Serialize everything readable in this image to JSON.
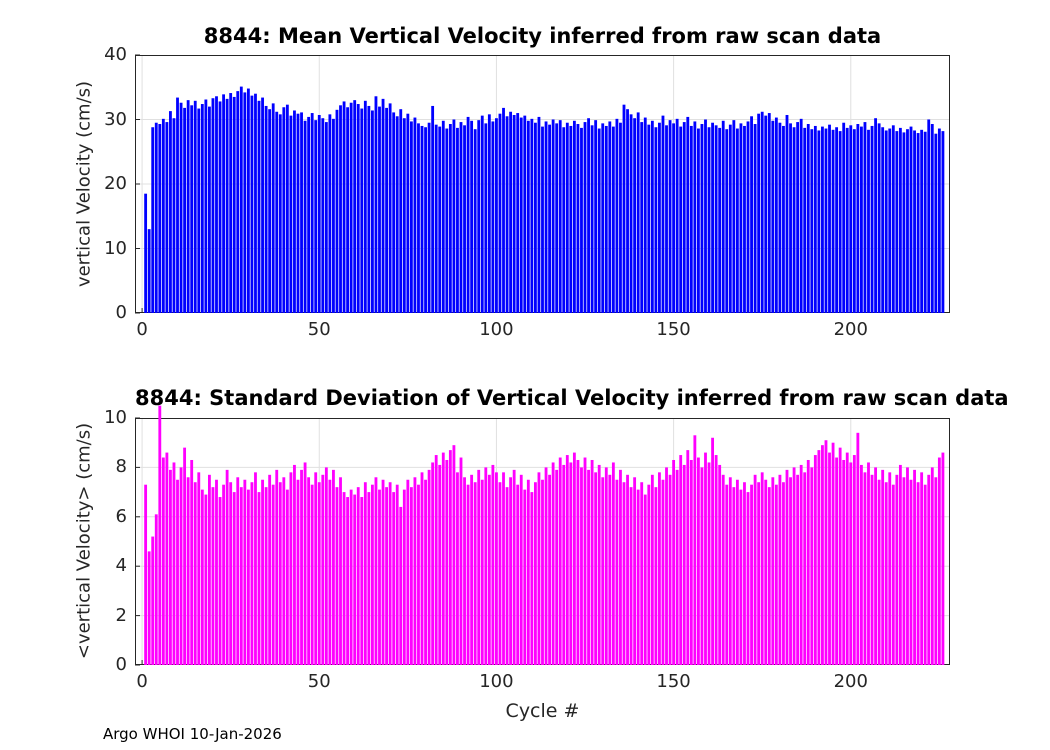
{
  "footer": {
    "text": "Argo WHOI 10-Jan-2026"
  },
  "chart_data": [
    {
      "type": "bar",
      "title": "8844: Mean Vertical Velocity inferred from raw scan data",
      "xlabel": "",
      "ylabel": "vertical Velocity (cm/s)",
      "bar_color": "#0000ff",
      "grid_color": "#e0e0e0",
      "axis_color": "#262626",
      "ylim": [
        0,
        40
      ],
      "yticks": [
        0,
        10,
        20,
        30,
        40
      ],
      "xlim": [
        -2,
        228
      ],
      "xticks": [
        0,
        50,
        100,
        150,
        200
      ],
      "x_start": 1,
      "legend": "none",
      "grid": "on",
      "values": [
        18.5,
        13.0,
        28.8,
        29.5,
        29.3,
        30.1,
        29.6,
        31.3,
        30.2,
        33.4,
        32.6,
        31.8,
        33.0,
        32.2,
        32.9,
        31.7,
        32.4,
        33.1,
        32.0,
        33.3,
        33.6,
        32.8,
        33.9,
        33.2,
        34.1,
        33.5,
        34.4,
        35.1,
        34.2,
        34.8,
        33.7,
        34.0,
        32.9,
        33.4,
        32.1,
        31.6,
        32.5,
        31.2,
        30.8,
        31.9,
        32.3,
        30.6,
        31.4,
        30.9,
        31.1,
        29.8,
        30.4,
        31.0,
        29.9,
        30.7,
        30.2,
        29.6,
        30.8,
        30.1,
        31.5,
        32.2,
        32.8,
        31.9,
        32.6,
        33.0,
        32.4,
        31.7,
        32.9,
        32.1,
        31.4,
        33.6,
        32.0,
        33.2,
        31.8,
        32.5,
        31.1,
        30.5,
        31.6,
        30.2,
        30.9,
        29.7,
        30.3,
        29.4,
        29.0,
        28.8,
        29.5,
        32.1,
        29.2,
        28.9,
        29.8,
        28.6,
        29.3,
        30.0,
        28.7,
        29.6,
        29.1,
        30.4,
        29.8,
        28.5,
        29.9,
        30.6,
        29.4,
        30.8,
        29.7,
        30.2,
        30.9,
        31.8,
        30.5,
        31.2,
        30.7,
        31.0,
        30.3,
        30.6,
        29.8,
        30.1,
        29.5,
        30.4,
        28.9,
        29.7,
        29.2,
        30.0,
        29.4,
        29.9,
        28.8,
        29.5,
        29.0,
        29.8,
        29.3,
        28.7,
        29.6,
        30.2,
        29.1,
        29.9,
        28.6,
        29.4,
        29.0,
        29.7,
        28.9,
        30.1,
        29.5,
        32.3,
        31.6,
        30.8,
        30.2,
        31.1,
        29.6,
        30.3,
        29.2,
        29.8,
        28.8,
        29.5,
        30.6,
        29.1,
        29.9,
        29.4,
        30.1,
        28.9,
        29.6,
        30.4,
        29.0,
        29.7,
        28.6,
        29.3,
        30.0,
        28.8,
        29.5,
        29.1,
        28.7,
        29.8,
        28.5,
        29.2,
        29.9,
        28.6,
        29.4,
        29.0,
        29.7,
        30.5,
        29.3,
        30.9,
        31.2,
        30.6,
        31.0,
        29.8,
        30.3,
        29.5,
        29.0,
        30.7,
        29.4,
        28.8,
        29.6,
        30.1,
        28.7,
        29.3,
        28.5,
        29.0,
        28.3,
        28.9,
        28.6,
        29.2,
        28.4,
        28.8,
        28.2,
        29.5,
        28.7,
        29.1,
        28.5,
        29.3,
        28.9,
        29.6,
        28.4,
        29.0,
        30.2,
        29.4,
        28.8,
        28.3,
        28.6,
        29.1,
        28.2,
        28.7,
        28.0,
        28.5,
        28.9,
        28.3,
        27.9,
        28.4,
        28.1,
        30.0,
        29.3,
        27.8,
        28.6,
        28.2
      ]
    },
    {
      "type": "bar",
      "title": "8844: Standard Deviation of Vertical Velocity inferred from raw scan data",
      "xlabel": "Cycle #",
      "ylabel": "<vertical Velocity> (cm/s)",
      "bar_color": "#ff00ff",
      "grid_color": "#e0e0e0",
      "axis_color": "#262626",
      "ylim": [
        0,
        10
      ],
      "yticks": [
        0,
        2,
        4,
        6,
        8,
        10
      ],
      "xlim": [
        -2,
        228
      ],
      "xticks": [
        0,
        50,
        100,
        150,
        200
      ],
      "x_start": 1,
      "legend": "none",
      "grid": "on",
      "values": [
        7.3,
        4.6,
        5.2,
        6.1,
        10.5,
        8.4,
        8.6,
        7.9,
        8.2,
        7.5,
        8.0,
        8.8,
        7.6,
        8.3,
        7.4,
        7.8,
        7.1,
        6.9,
        7.7,
        7.2,
        7.5,
        6.8,
        7.3,
        7.9,
        7.4,
        7.0,
        7.6,
        7.2,
        7.5,
        7.1,
        7.4,
        7.8,
        7.0,
        7.5,
        7.2,
        7.7,
        7.3,
        7.9,
        7.4,
        7.6,
        7.1,
        7.8,
        8.1,
        7.5,
        7.9,
        8.2,
        7.6,
        7.3,
        7.8,
        7.4,
        7.7,
        8.0,
        7.5,
        7.9,
        7.2,
        7.6,
        7.0,
        6.8,
        7.1,
        6.9,
        7.2,
        6.8,
        7.4,
        7.0,
        7.3,
        7.6,
        7.1,
        7.5,
        7.2,
        7.4,
        7.0,
        7.3,
        6.4,
        7.1,
        7.5,
        7.2,
        7.6,
        7.3,
        7.8,
        7.5,
        7.9,
        8.2,
        8.5,
        8.1,
        8.6,
        8.3,
        8.7,
        8.9,
        7.8,
        8.4,
        7.6,
        7.3,
        7.7,
        7.4,
        7.9,
        7.5,
        8.0,
        7.7,
        8.1,
        7.8,
        7.4,
        7.8,
        7.2,
        7.6,
        7.9,
        7.3,
        7.7,
        7.1,
        7.5,
        7.0,
        7.4,
        7.8,
        7.5,
        8.0,
        7.7,
        8.2,
        7.9,
        8.4,
        8.1,
        8.5,
        8.2,
        8.6,
        8.3,
        8.0,
        8.4,
        7.9,
        8.3,
        7.8,
        8.1,
        7.6,
        8.0,
        7.7,
        8.2,
        7.5,
        7.9,
        7.4,
        7.7,
        7.2,
        7.6,
        7.1,
        7.4,
        6.9,
        7.3,
        7.7,
        7.2,
        7.8,
        7.5,
        8.0,
        7.7,
        8.3,
        7.9,
        8.5,
        8.1,
        8.7,
        8.3,
        9.3,
        8.4,
        8.0,
        8.6,
        8.2,
        9.2,
        8.5,
        8.1,
        7.7,
        7.3,
        7.6,
        7.2,
        7.5,
        7.1,
        7.4,
        7.0,
        7.3,
        7.7,
        7.4,
        7.8,
        7.5,
        7.2,
        7.6,
        7.3,
        7.7,
        7.4,
        7.9,
        7.6,
        8.0,
        7.7,
        8.1,
        7.8,
        8.3,
        8.0,
        8.5,
        8.7,
        8.9,
        9.1,
        8.6,
        9.0,
        8.4,
        8.8,
        8.3,
        8.6,
        8.2,
        8.5,
        9.4,
        8.1,
        7.8,
        8.2,
        7.7,
        8.0,
        7.5,
        7.9,
        7.4,
        7.8,
        7.3,
        7.7,
        8.1,
        7.6,
        8.0,
        7.5,
        7.9,
        7.4,
        7.8,
        7.3,
        7.7,
        8.0,
        7.6,
        8.4,
        8.6
      ]
    }
  ]
}
